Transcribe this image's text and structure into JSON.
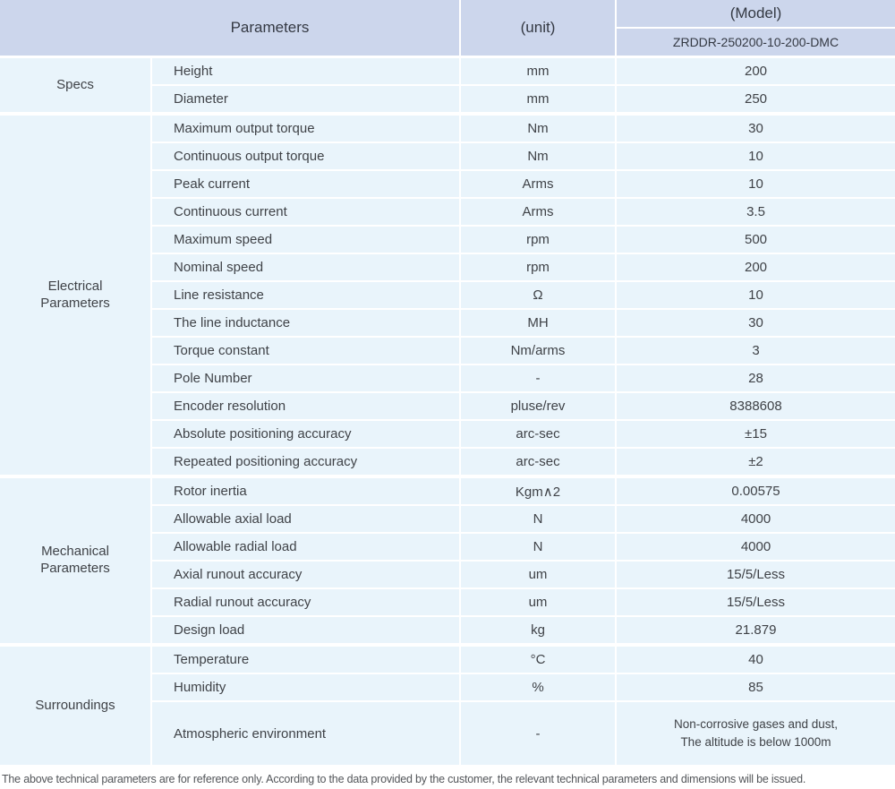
{
  "colors": {
    "header_bg": "#ccd6ec",
    "row_bg": "#e9f4fb",
    "separator": "#ffffff",
    "text": "#3f4247"
  },
  "header": {
    "parameters_label": "Parameters",
    "unit_label": "(unit)",
    "model_label": "(Model)",
    "model_value": "ZRDDR-250200-10-200-DMC"
  },
  "sections": [
    {
      "category": "Specs",
      "rows": [
        {
          "name": "Height",
          "unit": "mm",
          "value": "200"
        },
        {
          "name": "Diameter",
          "unit": "mm",
          "value": "250"
        }
      ]
    },
    {
      "category": "Electrical\nParameters",
      "rows": [
        {
          "name": "Maximum output torque",
          "unit": "Nm",
          "value": "30"
        },
        {
          "name": "Continuous output torque",
          "unit": "Nm",
          "value": "10"
        },
        {
          "name": "Peak current",
          "unit": "Arms",
          "value": "10"
        },
        {
          "name": "Continuous current",
          "unit": "Arms",
          "value": "3.5"
        },
        {
          "name": "Maximum speed",
          "unit": "rpm",
          "value": "500"
        },
        {
          "name": "Nominal speed",
          "unit": "rpm",
          "value": "200"
        },
        {
          "name": "Line resistance",
          "unit": "Ω",
          "value": "10"
        },
        {
          "name": "The line inductance",
          "unit": "MH",
          "value": "30"
        },
        {
          "name": "Torque constant",
          "unit": "Nm/arms",
          "value": "3"
        },
        {
          "name": "Pole Number",
          "unit": "-",
          "value": "28"
        },
        {
          "name": "Encoder resolution",
          "unit": "pluse/rev",
          "value": "8388608"
        },
        {
          "name": "Absolute positioning accuracy",
          "unit": "arc-sec",
          "value": "±15"
        },
        {
          "name": "Repeated positioning accuracy",
          "unit": "arc-sec",
          "value": "±2"
        }
      ]
    },
    {
      "category": "Mechanical\nParameters",
      "rows": [
        {
          "name": "Rotor inertia",
          "unit": "Kgm∧2",
          "value": "0.00575"
        },
        {
          "name": "Allowable axial load",
          "unit": "N",
          "value": "4000"
        },
        {
          "name": "Allowable radial load",
          "unit": "N",
          "value": "4000"
        },
        {
          "name": "Axial runout accuracy",
          "unit": "um",
          "value": "15/5/Less"
        },
        {
          "name": "Radial runout accuracy",
          "unit": "um",
          "value": "15/5/Less"
        },
        {
          "name": "Design load",
          "unit": "kg",
          "value": "21.879"
        }
      ]
    },
    {
      "category": "Surroundings",
      "rows": [
        {
          "name": "Temperature",
          "unit": "°C",
          "value": "40"
        },
        {
          "name": "Humidity",
          "unit": "%",
          "value": "85"
        },
        {
          "name": "Atmospheric environment",
          "unit": "-",
          "value": "Non-corrosive gases and dust,\nThe altitude is below 1000m",
          "tall": true
        }
      ]
    }
  ],
  "footer": {
    "note": "The above technical parameters are for reference only. According to the data provided by the customer, the relevant technical parameters and dimensions will be issued."
  }
}
